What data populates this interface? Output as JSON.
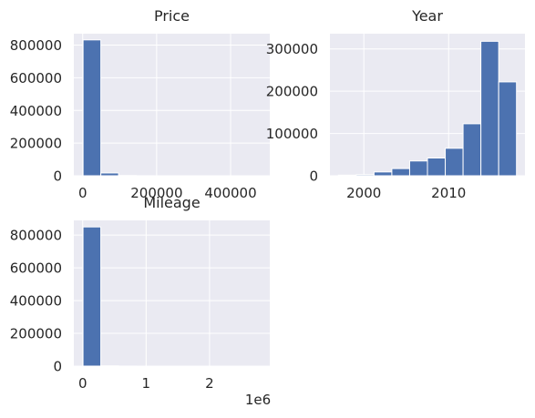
{
  "chart_data": [
    {
      "type": "bar",
      "title": "Price",
      "xlabel": "",
      "ylabel": "",
      "xlim": [
        -24000,
        506000
      ],
      "ylim": [
        0,
        870000
      ],
      "xticks": [
        0,
        200000,
        400000
      ],
      "xtick_labels": [
        "0",
        "200000",
        "400000"
      ],
      "yticks": [
        0,
        200000,
        400000,
        600000,
        800000
      ],
      "ytick_labels": [
        "0",
        "200000",
        "400000",
        "600000",
        "800000"
      ],
      "bin_edges": [
        1000,
        49000,
        97000,
        145000,
        193000,
        241000,
        289000,
        337000,
        385000,
        433000,
        481000
      ],
      "values": [
        832000,
        17000,
        1500,
        300,
        100,
        50,
        20,
        10,
        5,
        3
      ],
      "bar_color": "#4c72b0",
      "grid": true
    },
    {
      "type": "bar",
      "title": "Year",
      "xlabel": "",
      "ylabel": "",
      "xlim": [
        1996,
        2019
      ],
      "ylim": [
        0,
        336000
      ],
      "xticks": [
        2000,
        2010
      ],
      "xtick_labels": [
        "2000",
        "2010"
      ],
      "yticks": [
        0,
        100000,
        200000,
        300000
      ],
      "ytick_labels": [
        "0",
        "100000",
        "200000",
        "300000"
      ],
      "bin_edges": [
        1997,
        1999.1,
        2001.2,
        2003.3,
        2005.4,
        2007.5,
        2009.6,
        2011.7,
        2013.8,
        2015.9,
        2018
      ],
      "values": [
        1500,
        2500,
        9000,
        17000,
        35000,
        42000,
        65000,
        123000,
        318000,
        222000
      ],
      "bar_color": "#4c72b0",
      "grid": true
    },
    {
      "type": "bar",
      "title": "Mileage",
      "xlabel": "",
      "ylabel": "",
      "offset_text": "1e6",
      "xlim": [
        -0.14,
        2.95
      ],
      "ylim": [
        0,
        890000
      ],
      "xticks": [
        0,
        1,
        2
      ],
      "xtick_labels": [
        "0",
        "1",
        "2"
      ],
      "yticks": [
        0,
        200000,
        400000,
        600000,
        800000
      ],
      "ytick_labels": [
        "0",
        "200000",
        "400000",
        "600000",
        "800000"
      ],
      "bin_edges": [
        0.005,
        0.285,
        0.565,
        0.845,
        1.125,
        1.405,
        1.685,
        1.965,
        2.245,
        2.525,
        2.805
      ],
      "values": [
        850000,
        1500,
        200,
        50,
        20,
        10,
        5,
        2,
        1,
        1
      ],
      "bar_color": "#4c72b0",
      "grid": true
    }
  ],
  "style": {
    "axes_background": "#eaeaf2",
    "grid_color": "#ffffff",
    "text_color": "#262626"
  }
}
